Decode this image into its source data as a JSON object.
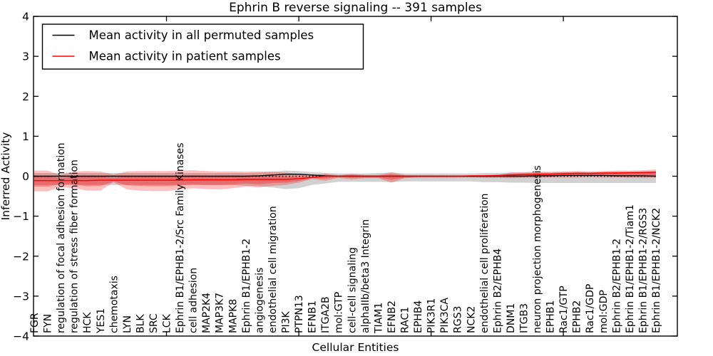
{
  "chart_data": {
    "type": "line",
    "title": "Ephrin B reverse signaling -- 391 samples",
    "xlabel": "Cellular Entities",
    "ylabel": "Inferred Activity",
    "ylim": [
      -4,
      4
    ],
    "ytick_values": [
      4,
      3,
      2,
      1,
      0,
      -1,
      -2,
      -3,
      -4
    ],
    "ytick_labels": [
      "4",
      "3",
      "2",
      "1",
      "0",
      "−1",
      "−2",
      "−3",
      "−4"
    ],
    "grid": false,
    "legend_position": "upper left",
    "legend": [
      {
        "label": "Mean activity in all permuted samples",
        "color": "#000000"
      },
      {
        "label": "Mean activity in patient samples",
        "color": "#ff0000"
      }
    ],
    "reference_line": {
      "y": 0,
      "color": "#000000",
      "style": "dotted"
    },
    "categories": [
      "FGR",
      "FYN",
      "regulation of focal adhesion formation",
      "regulation of stress fiber formation",
      "HCK",
      "YES1",
      "chemotaxis",
      "LYN",
      "BLK",
      "SRC",
      "LCK",
      "Ephrin B1/EPHB1-2/Src Family Kinases",
      "cell adhesion",
      "MAP2K4",
      "MAP3K7",
      "MAPK8",
      "Ephrin B1/EPHB1-2",
      "angiogenesis",
      "endothelial cell migration",
      "PI3K",
      "PTPN13",
      "EFNB1",
      "ITGA2B",
      "mol:GTP",
      "cell-cell signaling",
      "alphaIIb/beta3 Integrin",
      "TIAM1",
      "EFNB2",
      "RAC1",
      "EPHB4",
      "PIK3R1",
      "PIK3CA",
      "RGS3",
      "NCK2",
      "endothelial cell proliferation",
      "Ephrin B2/EPHB4",
      "DNM1",
      "ITGB3",
      "neuron projection morphogenesis",
      "EPHB1",
      "Rac1/GTP",
      "EPHB2",
      "Rac1/GDP",
      "mol:GDP",
      "Ephrin B2/EPHB1-2",
      "Ephrin B1/EPHB1-2/Tiam1",
      "Ephrin B1/EPHB1-2/RGS3",
      "Ephrin B1/EPHB1-2/NCK2"
    ],
    "series": [
      {
        "name": "Mean activity in all permuted samples",
        "color": "#000000",
        "style": "solid",
        "values": [
          0,
          0,
          0,
          0,
          0,
          0,
          0,
          0,
          0,
          0,
          0,
          0,
          0,
          0,
          0,
          0,
          0,
          0.01,
          0.03,
          0.05,
          0.05,
          0.03,
          0.01,
          0,
          0,
          0,
          0,
          0,
          0,
          0,
          0,
          0,
          0,
          0,
          0,
          0,
          0,
          0,
          0.01,
          0.01,
          0.02,
          0.02,
          0.02,
          0.02,
          0.01,
          0.01,
          0.01,
          0
        ]
      },
      {
        "name": "Mean activity in patient samples",
        "color": "#ff0000",
        "style": "solid",
        "values": [
          -0.11,
          -0.11,
          -0.11,
          -0.11,
          -0.11,
          -0.1,
          -0.1,
          -0.1,
          -0.1,
          -0.1,
          -0.1,
          -0.1,
          -0.09,
          -0.09,
          -0.09,
          -0.09,
          -0.08,
          -0.08,
          -0.08,
          -0.08,
          -0.06,
          -0.03,
          0,
          0,
          0,
          0,
          0,
          0,
          0,
          0,
          0,
          0,
          0,
          0.01,
          0.01,
          0.02,
          0.03,
          0.04,
          0.05,
          0.05,
          0.06,
          0.07,
          0.07,
          0.08,
          0.08,
          0.09,
          0.09,
          0.1
        ]
      }
    ],
    "bands": [
      {
        "name": "permuted-sample-range",
        "color": "#999999",
        "opacity": 0.45,
        "upper": [
          0.08,
          0.08,
          0.08,
          0.08,
          0.08,
          0.08,
          0.08,
          0.08,
          0.08,
          0.08,
          0.08,
          0.08,
          0.08,
          0.08,
          0.08,
          0.08,
          0.08,
          0.09,
          0.11,
          0.14,
          0.13,
          0.1,
          0.08,
          0.07,
          0.07,
          0.07,
          0.08,
          0.09,
          0.07,
          0.07,
          0.07,
          0.07,
          0.07,
          0.07,
          0.08,
          0.08,
          0.09,
          0.09,
          0.09,
          0.09,
          0.1,
          0.1,
          0.1,
          0.1,
          0.1,
          0.1,
          0.11,
          0.11
        ],
        "lower": [
          -0.22,
          -0.22,
          -0.22,
          -0.22,
          -0.22,
          -0.22,
          -0.22,
          -0.22,
          -0.22,
          -0.22,
          -0.22,
          -0.22,
          -0.22,
          -0.22,
          -0.22,
          -0.22,
          -0.24,
          -0.25,
          -0.28,
          -0.32,
          -0.3,
          -0.22,
          -0.18,
          -0.14,
          -0.14,
          -0.14,
          -0.14,
          -0.15,
          -0.13,
          -0.13,
          -0.13,
          -0.13,
          -0.13,
          -0.13,
          -0.15,
          -0.15,
          -0.16,
          -0.16,
          -0.17,
          -0.17,
          -0.17,
          -0.17,
          -0.17,
          -0.17,
          -0.17,
          -0.17,
          -0.17,
          -0.17
        ]
      },
      {
        "name": "patient-sample-range-outer",
        "color": "#ff0000",
        "opacity": 0.25,
        "upper": [
          0.14,
          0.14,
          0.03,
          0.12,
          0.13,
          0.12,
          0.04,
          0.12,
          0.13,
          0.13,
          0.13,
          0.14,
          0.15,
          0.13,
          0.12,
          0.12,
          0.11,
          0.12,
          0.11,
          0.09,
          0.06,
          0.02,
          0.07,
          0.02,
          0.06,
          0.03,
          0.03,
          0.1,
          0.03,
          0.02,
          0.02,
          0.02,
          0.02,
          0.02,
          0.03,
          0.03,
          0.09,
          0.1,
          0.12,
          0.11,
          0.12,
          0.13,
          0.12,
          0.13,
          0.14,
          0.14,
          0.15,
          0.17
        ],
        "lower": [
          -0.38,
          -0.38,
          -0.27,
          -0.3,
          -0.36,
          -0.36,
          -0.15,
          -0.33,
          -0.36,
          -0.37,
          -0.37,
          -0.33,
          -0.3,
          -0.32,
          -0.33,
          -0.3,
          -0.26,
          -0.28,
          -0.24,
          -0.22,
          -0.16,
          -0.07,
          -0.11,
          -0.04,
          -0.08,
          -0.05,
          -0.05,
          -0.16,
          -0.05,
          -0.03,
          -0.03,
          -0.03,
          -0.03,
          -0.03,
          -0.04,
          -0.04,
          -0.05,
          -0.04,
          -0.04,
          -0.03,
          -0.03,
          -0.03,
          -0.02,
          -0.03,
          -0.03,
          -0.04,
          -0.04,
          -0.04
        ]
      },
      {
        "name": "patient-sample-range-inner",
        "color": "#ff0000",
        "opacity": 0.3,
        "upper": [
          0.0,
          0.0,
          -0.05,
          -0.01,
          0.0,
          0.0,
          -0.04,
          0.0,
          0.0,
          0.0,
          0.0,
          0.01,
          0.02,
          0.01,
          0.0,
          0.0,
          0.01,
          0.01,
          0.01,
          0.0,
          -0.01,
          -0.01,
          0.03,
          0.01,
          0.03,
          0.01,
          0.01,
          0.05,
          0.01,
          0.01,
          0.01,
          0.01,
          0.01,
          0.01,
          0.02,
          0.02,
          0.06,
          0.07,
          0.08,
          0.08,
          0.09,
          0.1,
          0.09,
          0.1,
          0.11,
          0.11,
          0.12,
          0.13
        ],
        "lower": [
          -0.26,
          -0.26,
          -0.2,
          -0.21,
          -0.25,
          -0.24,
          -0.13,
          -0.23,
          -0.24,
          -0.25,
          -0.25,
          -0.23,
          -0.21,
          -0.22,
          -0.22,
          -0.21,
          -0.18,
          -0.2,
          -0.17,
          -0.16,
          -0.12,
          -0.05,
          -0.06,
          -0.02,
          -0.04,
          -0.03,
          -0.03,
          -0.09,
          -0.03,
          -0.02,
          -0.02,
          -0.02,
          -0.02,
          -0.01,
          -0.02,
          -0.01,
          -0.01,
          0.0,
          0.0,
          0.01,
          0.01,
          0.02,
          0.02,
          0.02,
          0.02,
          0.02,
          0.02,
          0.02
        ]
      }
    ]
  }
}
